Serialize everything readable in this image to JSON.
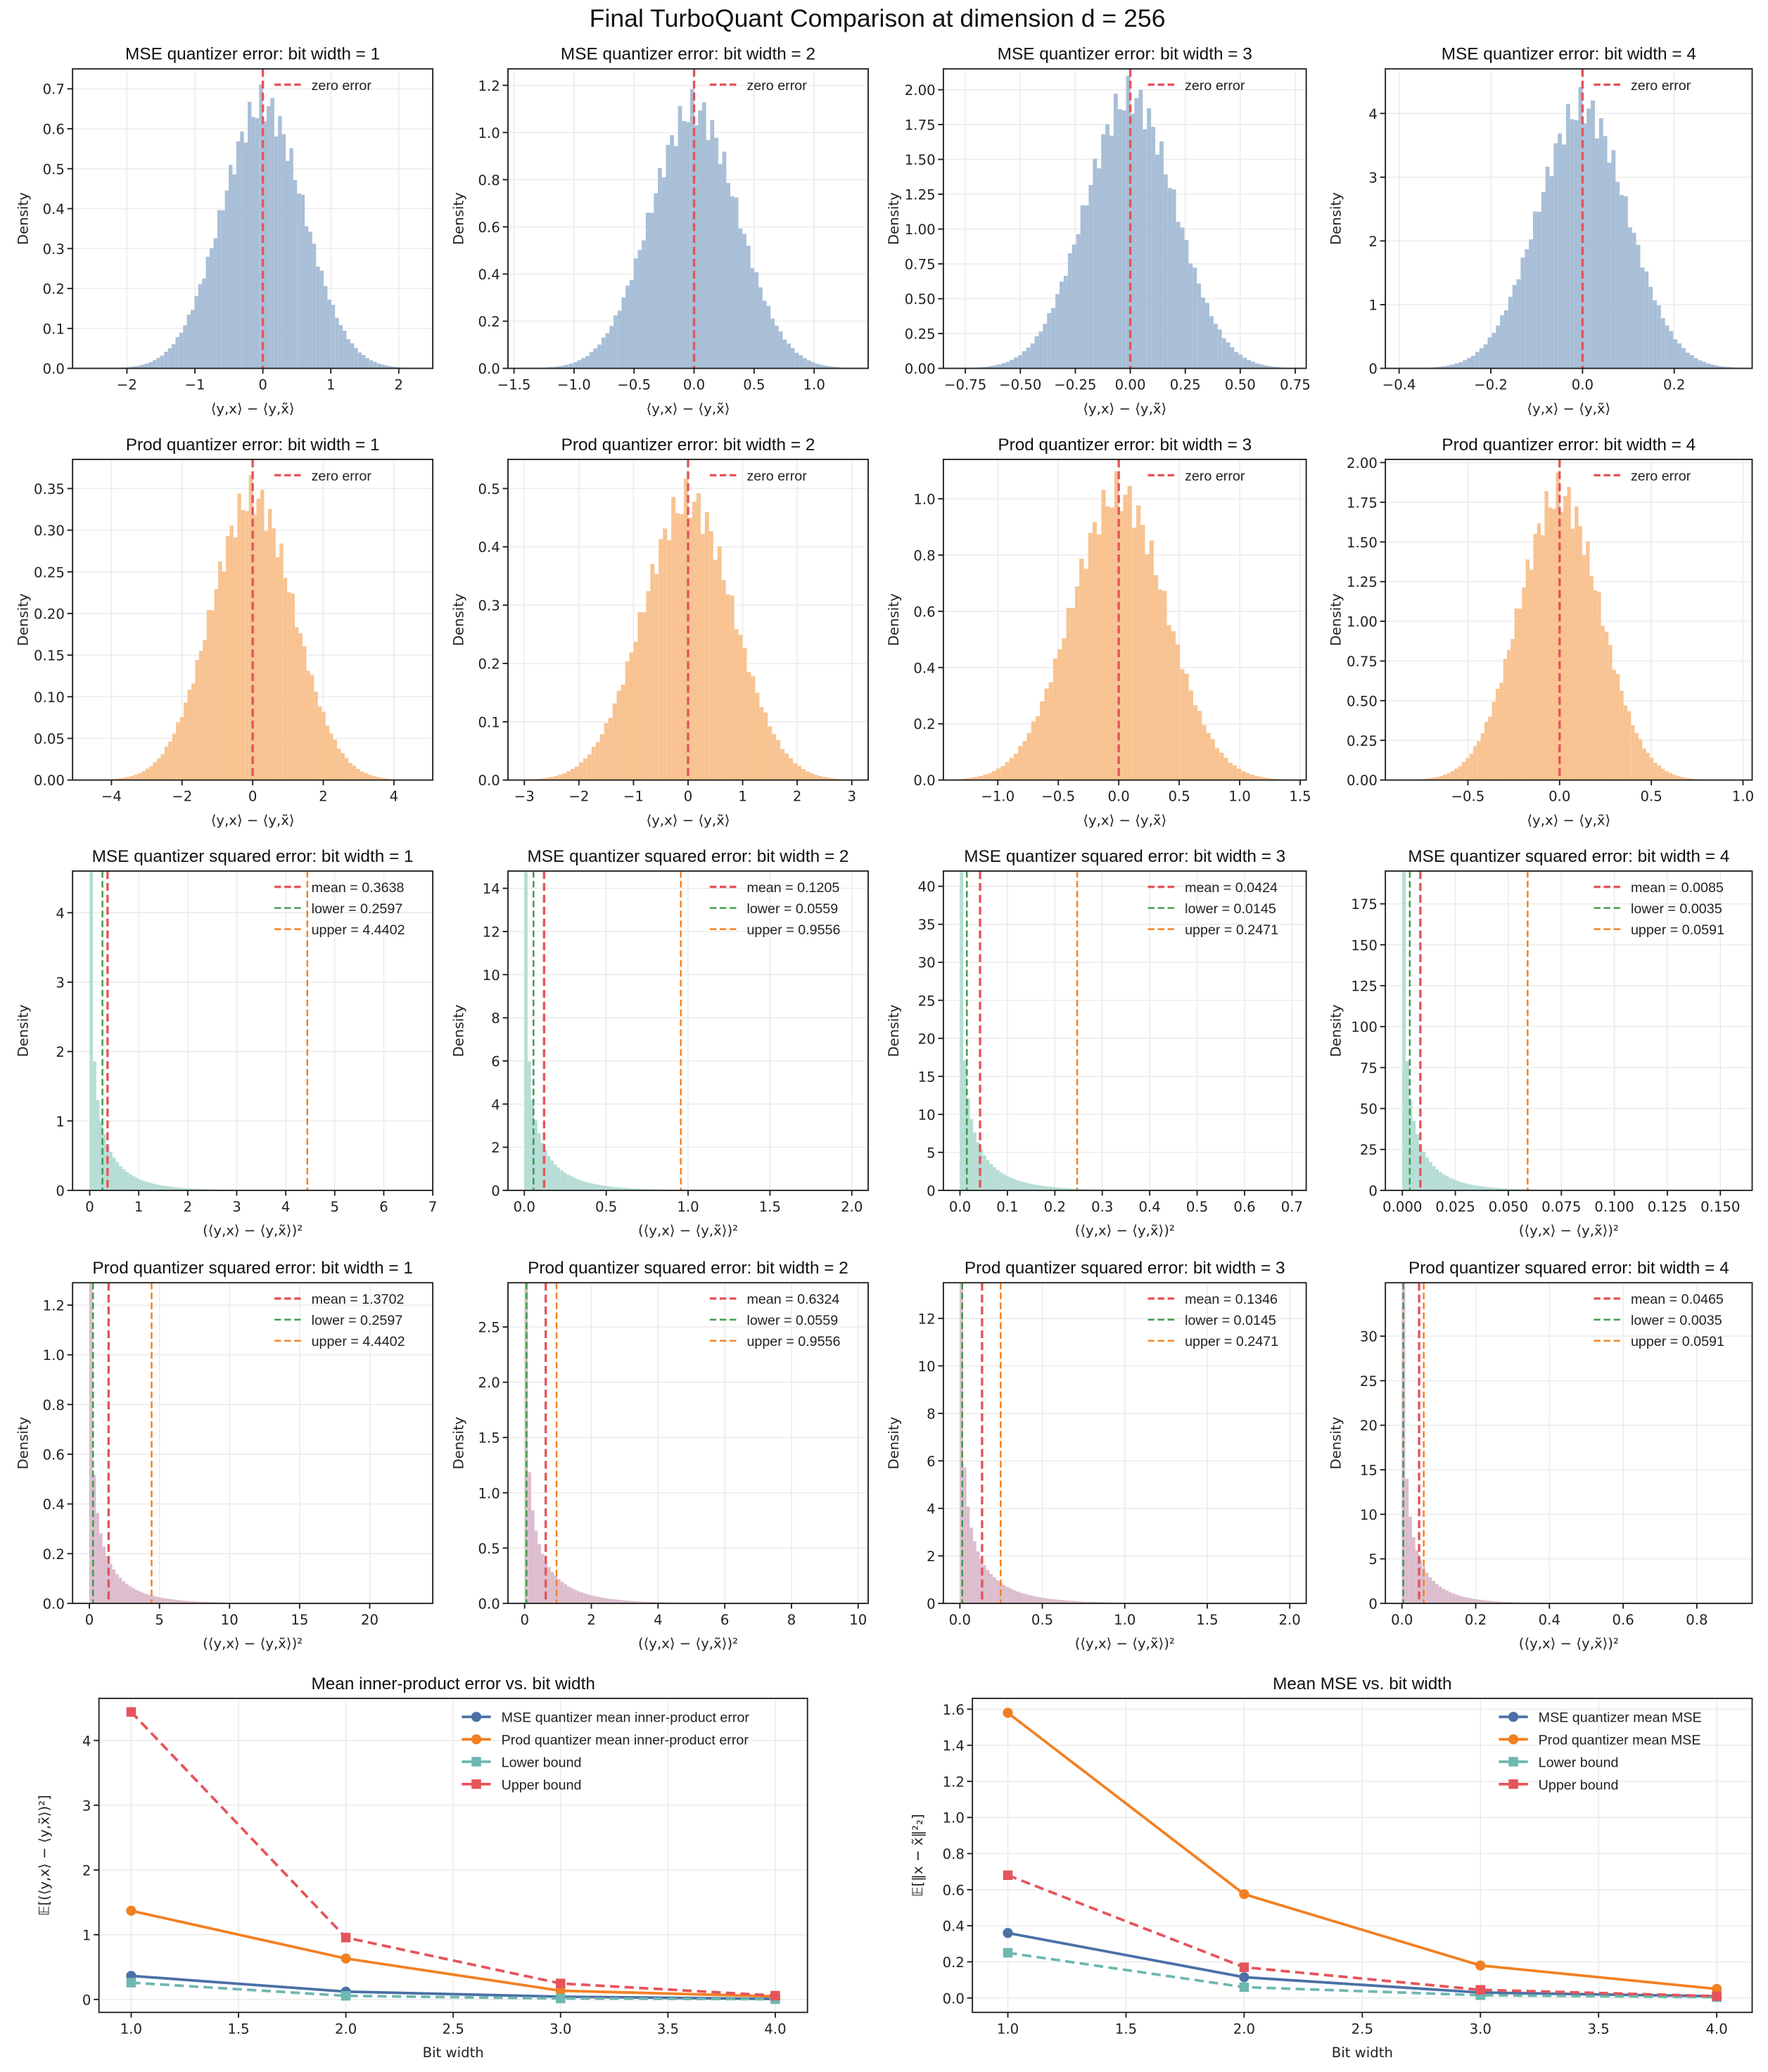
{
  "title": "Final TurboQuant Comparison at dimension d = 256",
  "chart_data": [
    {
      "type": "histogram",
      "title": "MSE quantizer error: bit width = 1",
      "xlabel": "⟨y,x⟩ − ⟨y,x̃⟩",
      "ylabel": "Density",
      "xlim": [
        -2.8,
        2.5
      ],
      "ylim": [
        0,
        0.75
      ],
      "xticks": [
        "−2",
        "−1",
        "0",
        "1",
        "2"
      ],
      "yticks": [
        "0.0",
        "0.1",
        "0.2",
        "0.3",
        "0.4",
        "0.5",
        "0.6",
        "0.7"
      ],
      "peak_density": 0.66,
      "color": "#a9bfd7",
      "vlines": [
        {
          "label": "zero error",
          "value": 0,
          "color": "#e5545b"
        }
      ]
    },
    {
      "type": "histogram",
      "title": "MSE quantizer error: bit width = 2",
      "xlabel": "⟨y,x⟩ − ⟨y,x̃⟩",
      "ylabel": "Density",
      "xlim": [
        -1.55,
        1.45
      ],
      "ylim": [
        0,
        1.27
      ],
      "xticks": [
        "−1.5",
        "−1.0",
        "−0.5",
        "0.0",
        "0.5",
        "1.0"
      ],
      "yticks": [
        "0.0",
        "0.2",
        "0.4",
        "0.6",
        "0.8",
        "1.0",
        "1.2"
      ],
      "peak_density": 1.1,
      "color": "#a9bfd7",
      "vlines": [
        {
          "label": "zero error",
          "value": 0,
          "color": "#e5545b"
        }
      ]
    },
    {
      "type": "histogram",
      "title": "MSE quantizer error: bit width = 3",
      "xlabel": "⟨y,x⟩ − ⟨y,x̃⟩",
      "ylabel": "Density",
      "xlim": [
        -0.85,
        0.8
      ],
      "ylim": [
        0,
        2.15
      ],
      "xticks": [
        "−0.75",
        "−0.50",
        "−0.25",
        "0.00",
        "0.25",
        "0.50",
        "0.75"
      ],
      "yticks": [
        "0.00",
        "0.25",
        "0.50",
        "0.75",
        "1.00",
        "1.25",
        "1.50",
        "1.75",
        "2.00"
      ],
      "peak_density": 1.95,
      "color": "#a9bfd7",
      "vlines": [
        {
          "label": "zero error",
          "value": 0,
          "color": "#e5545b"
        }
      ]
    },
    {
      "type": "histogram",
      "title": "MSE quantizer error: bit width = 4",
      "xlabel": "⟨y,x⟩ − ⟨y,x̃⟩",
      "ylabel": "Density",
      "xlim": [
        -0.43,
        0.37
      ],
      "ylim": [
        0,
        4.7
      ],
      "xticks": [
        "−0.4",
        "−0.2",
        "0.0",
        "0.2"
      ],
      "yticks": [
        "0",
        "1",
        "2",
        "3",
        "4"
      ],
      "peak_density": 4.1,
      "color": "#a9bfd7",
      "vlines": [
        {
          "label": "zero error",
          "value": 0,
          "color": "#e5545b"
        }
      ]
    },
    {
      "type": "histogram",
      "title": "Prod quantizer error: bit width = 1",
      "xlabel": "⟨y,x⟩ − ⟨y,x̃⟩",
      "ylabel": "Density",
      "xlim": [
        -5.1,
        5.1
      ],
      "ylim": [
        0,
        0.385
      ],
      "xticks": [
        "−4",
        "−2",
        "0",
        "2",
        "4"
      ],
      "yticks": [
        "0.00",
        "0.05",
        "0.10",
        "0.15",
        "0.20",
        "0.25",
        "0.30",
        "0.35"
      ],
      "peak_density": 0.34,
      "color": "#f8c391",
      "vlines": [
        {
          "label": "zero error",
          "value": 0,
          "color": "#e5545b"
        }
      ]
    },
    {
      "type": "histogram",
      "title": "Prod quantizer error: bit width = 2",
      "xlabel": "⟨y,x⟩ − ⟨y,x̃⟩",
      "ylabel": "Density",
      "xlim": [
        -3.3,
        3.3
      ],
      "ylim": [
        0,
        0.55
      ],
      "xticks": [
        "−3",
        "−2",
        "−1",
        "0",
        "1",
        "2",
        "3"
      ],
      "yticks": [
        "0.0",
        "0.1",
        "0.2",
        "0.3",
        "0.4",
        "0.5"
      ],
      "peak_density": 0.48,
      "color": "#f8c391",
      "vlines": [
        {
          "label": "zero error",
          "value": 0,
          "color": "#e5545b"
        }
      ]
    },
    {
      "type": "histogram",
      "title": "Prod quantizer error: bit width = 3",
      "xlabel": "⟨y,x⟩ − ⟨y,x̃⟩",
      "ylabel": "Density",
      "xlim": [
        -1.45,
        1.55
      ],
      "ylim": [
        0,
        1.14
      ],
      "xticks": [
        "−1.0",
        "−0.5",
        "0.0",
        "0.5",
        "1.0",
        "1.5"
      ],
      "yticks": [
        "0.0",
        "0.2",
        "0.4",
        "0.6",
        "0.8",
        "1.0"
      ],
      "peak_density": 1.02,
      "color": "#f8c391",
      "vlines": [
        {
          "label": "zero error",
          "value": 0,
          "color": "#e5545b"
        }
      ]
    },
    {
      "type": "histogram",
      "title": "Prod quantizer error: bit width = 4",
      "xlabel": "⟨y,x⟩ − ⟨y,x̃⟩",
      "ylabel": "Density",
      "xlim": [
        -0.95,
        1.05
      ],
      "ylim": [
        0,
        2.02
      ],
      "xticks": [
        "−0.5",
        "0.0",
        "0.5",
        "1.0"
      ],
      "yticks": [
        "0.00",
        "0.25",
        "0.50",
        "0.75",
        "1.00",
        "1.25",
        "1.50",
        "1.75",
        "2.00"
      ],
      "peak_density": 1.8,
      "color": "#f8c391",
      "vlines": [
        {
          "label": "zero error",
          "value": 0,
          "color": "#e5545b"
        }
      ]
    },
    {
      "type": "histogram",
      "title": "MSE quantizer squared error: bit width = 1",
      "xlabel": "(⟨y,x⟩ − ⟨y,x̃⟩)²",
      "ylabel": "Density",
      "xlim": [
        -0.35,
        7.0
      ],
      "ylim": [
        0,
        4.6
      ],
      "xticks": [
        "0",
        "1",
        "2",
        "3",
        "4",
        "5",
        "6",
        "7"
      ],
      "yticks": [
        "0",
        "1",
        "2",
        "3",
        "4"
      ],
      "mean": 0.3638,
      "color": "#b6ddd6",
      "vlines": [
        {
          "label": "mean = 0.3638",
          "value": 0.3638,
          "color": "#e5545b"
        },
        {
          "label": "lower = 0.2597",
          "value": 0.2597,
          "color": "#3b9a4a"
        },
        {
          "label": "upper = 4.4402",
          "value": 4.4402,
          "color": "#f28022"
        }
      ]
    },
    {
      "type": "histogram",
      "title": "MSE quantizer squared error: bit width = 2",
      "xlabel": "(⟨y,x⟩ − ⟨y,x̃⟩)²",
      "ylabel": "Density",
      "xlim": [
        -0.1,
        2.1
      ],
      "ylim": [
        0,
        14.8
      ],
      "xticks": [
        "0.0",
        "0.5",
        "1.0",
        "1.5",
        "2.0"
      ],
      "yticks": [
        "0",
        "2",
        "4",
        "6",
        "8",
        "10",
        "12",
        "14"
      ],
      "mean": 0.1205,
      "color": "#b6ddd6",
      "vlines": [
        {
          "label": "mean = 0.1205",
          "value": 0.1205,
          "color": "#e5545b"
        },
        {
          "label": "lower = 0.0559",
          "value": 0.0559,
          "color": "#3b9a4a"
        },
        {
          "label": "upper = 0.9556",
          "value": 0.9556,
          "color": "#f28022"
        }
      ]
    },
    {
      "type": "histogram",
      "title": "MSE quantizer squared error: bit width = 3",
      "xlabel": "(⟨y,x⟩ − ⟨y,x̃⟩)²",
      "ylabel": "Density",
      "xlim": [
        -0.035,
        0.73
      ],
      "ylim": [
        0,
        42
      ],
      "xticks": [
        "0.0",
        "0.1",
        "0.2",
        "0.3",
        "0.4",
        "0.5",
        "0.6",
        "0.7"
      ],
      "yticks": [
        "0",
        "5",
        "10",
        "15",
        "20",
        "25",
        "30",
        "35",
        "40"
      ],
      "mean": 0.0424,
      "color": "#b6ddd6",
      "vlines": [
        {
          "label": "mean = 0.0424",
          "value": 0.0424,
          "color": "#e5545b"
        },
        {
          "label": "lower = 0.0145",
          "value": 0.0145,
          "color": "#3b9a4a"
        },
        {
          "label": "upper = 0.2471",
          "value": 0.2471,
          "color": "#f28022"
        }
      ]
    },
    {
      "type": "histogram",
      "title": "MSE quantizer squared error: bit width = 4",
      "xlabel": "(⟨y,x⟩ − ⟨y,x̃⟩)²",
      "ylabel": "Density",
      "xlim": [
        -0.008,
        0.165
      ],
      "ylim": [
        0,
        195
      ],
      "xticks": [
        "0.000",
        "0.025",
        "0.050",
        "0.075",
        "0.100",
        "0.125",
        "0.150"
      ],
      "yticks": [
        "0",
        "25",
        "50",
        "75",
        "100",
        "125",
        "150",
        "175"
      ],
      "mean": 0.0085,
      "color": "#b6ddd6",
      "vlines": [
        {
          "label": "mean = 0.0085",
          "value": 0.0085,
          "color": "#e5545b"
        },
        {
          "label": "lower = 0.0035",
          "value": 0.0035,
          "color": "#3b9a4a"
        },
        {
          "label": "upper = 0.0591",
          "value": 0.0591,
          "color": "#f28022"
        }
      ]
    },
    {
      "type": "histogram",
      "title": "Prod quantizer squared error: bit width = 1",
      "xlabel": "(⟨y,x⟩ − ⟨y,x̃⟩)²",
      "ylabel": "Density",
      "xlim": [
        -1.2,
        24.5
      ],
      "ylim": [
        0,
        1.29
      ],
      "xticks": [
        "0",
        "5",
        "10",
        "15",
        "20"
      ],
      "yticks": [
        "0.0",
        "0.2",
        "0.4",
        "0.6",
        "0.8",
        "1.0",
        "1.2"
      ],
      "mean": 1.3702,
      "color": "#dcbdce",
      "vlines": [
        {
          "label": "mean = 1.3702",
          "value": 1.3702,
          "color": "#e5545b"
        },
        {
          "label": "lower = 0.2597",
          "value": 0.2597,
          "color": "#3b9a4a"
        },
        {
          "label": "upper = 4.4402",
          "value": 4.4402,
          "color": "#f28022"
        }
      ]
    },
    {
      "type": "histogram",
      "title": "Prod quantizer squared error: bit width = 2",
      "xlabel": "(⟨y,x⟩ − ⟨y,x̃⟩)²",
      "ylabel": "Density",
      "xlim": [
        -0.5,
        10.3
      ],
      "ylim": [
        0,
        2.9
      ],
      "xticks": [
        "0",
        "2",
        "4",
        "6",
        "8",
        "10"
      ],
      "yticks": [
        "0.0",
        "0.5",
        "1.0",
        "1.5",
        "2.0",
        "2.5"
      ],
      "mean": 0.6324,
      "color": "#dcbdce",
      "vlines": [
        {
          "label": "mean = 0.6324",
          "value": 0.6324,
          "color": "#e5545b"
        },
        {
          "label": "lower = 0.0559",
          "value": 0.0559,
          "color": "#3b9a4a"
        },
        {
          "label": "upper = 0.9556",
          "value": 0.9556,
          "color": "#f28022"
        }
      ]
    },
    {
      "type": "histogram",
      "title": "Prod quantizer squared error: bit width = 3",
      "xlabel": "(⟨y,x⟩ − ⟨y,x̃⟩)²",
      "ylabel": "Density",
      "xlim": [
        -0.1,
        2.1
      ],
      "ylim": [
        0,
        13.5
      ],
      "xticks": [
        "0.0",
        "0.5",
        "1.0",
        "1.5",
        "2.0"
      ],
      "yticks": [
        "0",
        "2",
        "4",
        "6",
        "8",
        "10",
        "12"
      ],
      "mean": 0.1346,
      "color": "#dcbdce",
      "vlines": [
        {
          "label": "mean = 0.1346",
          "value": 0.1346,
          "color": "#e5545b"
        },
        {
          "label": "lower = 0.0145",
          "value": 0.0145,
          "color": "#3b9a4a"
        },
        {
          "label": "upper = 0.2471",
          "value": 0.2471,
          "color": "#f28022"
        }
      ]
    },
    {
      "type": "histogram",
      "title": "Prod quantizer squared error: bit width = 4",
      "xlabel": "(⟨y,x⟩ − ⟨y,x̃⟩)²",
      "ylabel": "Density",
      "xlim": [
        -0.045,
        0.95
      ],
      "ylim": [
        0,
        36
      ],
      "xticks": [
        "0.0",
        "0.2",
        "0.4",
        "0.6",
        "0.8"
      ],
      "yticks": [
        "0",
        "5",
        "10",
        "15",
        "20",
        "25",
        "30"
      ],
      "mean": 0.0465,
      "color": "#dcbdce",
      "vlines": [
        {
          "label": "mean = 0.0465",
          "value": 0.0465,
          "color": "#e5545b"
        },
        {
          "label": "lower = 0.0035",
          "value": 0.0035,
          "color": "#3b9a4a"
        },
        {
          "label": "upper = 0.0591",
          "value": 0.0591,
          "color": "#f28022"
        }
      ]
    },
    {
      "type": "line",
      "title": "Mean inner-product error vs. bit width",
      "xlabel": "Bit width",
      "ylabel": "𝔼[(⟨y,x⟩ − ⟨y,x̃⟩)²]",
      "xlim": [
        0.85,
        4.15
      ],
      "ylim": [
        -0.2,
        4.65
      ],
      "xticks": [
        "1.0",
        "1.5",
        "2.0",
        "2.5",
        "3.0",
        "3.5",
        "4.0"
      ],
      "yticks": [
        "0",
        "1",
        "2",
        "3",
        "4"
      ],
      "grid": true,
      "legend": "top-right",
      "x": [
        1,
        2,
        3,
        4
      ],
      "series": [
        {
          "name": "MSE quantizer mean inner-product error",
          "values": [
            0.3638,
            0.1205,
            0.0424,
            0.0085
          ],
          "color": "#4a70a6",
          "marker": "circle",
          "dash": false
        },
        {
          "name": "Prod quantizer mean inner-product error",
          "values": [
            1.3702,
            0.6324,
            0.1346,
            0.0465
          ],
          "color": "#f28022",
          "marker": "circle",
          "dash": false
        },
        {
          "name": "Lower bound",
          "values": [
            0.2597,
            0.0559,
            0.0145,
            0.0035
          ],
          "color": "#6db8af",
          "marker": "square",
          "dash": true
        },
        {
          "name": "Upper bound",
          "values": [
            4.4402,
            0.9556,
            0.2471,
            0.0591
          ],
          "color": "#e5545b",
          "marker": "square",
          "dash": true
        }
      ]
    },
    {
      "type": "line",
      "title": "Mean MSE vs. bit width",
      "xlabel": "Bit width",
      "ylabel": "𝔼[‖x − x̃‖²₂]",
      "xlim": [
        0.85,
        4.15
      ],
      "ylim": [
        -0.08,
        1.66
      ],
      "xticks": [
        "1.0",
        "1.5",
        "2.0",
        "2.5",
        "3.0",
        "3.5",
        "4.0"
      ],
      "yticks": [
        "0.0",
        "0.2",
        "0.4",
        "0.6",
        "0.8",
        "1.0",
        "1.2",
        "1.4",
        "1.6"
      ],
      "grid": true,
      "legend": "top-right",
      "x": [
        1,
        2,
        3,
        4
      ],
      "series": [
        {
          "name": "MSE quantizer mean MSE",
          "values": [
            0.36,
            0.115,
            0.03,
            0.009
          ],
          "color": "#4a70a6",
          "marker": "circle",
          "dash": false
        },
        {
          "name": "Prod quantizer mean MSE",
          "values": [
            1.58,
            0.575,
            0.18,
            0.05
          ],
          "color": "#f28022",
          "marker": "circle",
          "dash": false
        },
        {
          "name": "Lower bound",
          "values": [
            0.25,
            0.06,
            0.015,
            0.004
          ],
          "color": "#6db8af",
          "marker": "square",
          "dash": true
        },
        {
          "name": "Upper bound",
          "values": [
            0.68,
            0.17,
            0.045,
            0.01
          ],
          "color": "#e5545b",
          "marker": "square",
          "dash": true
        }
      ]
    }
  ]
}
